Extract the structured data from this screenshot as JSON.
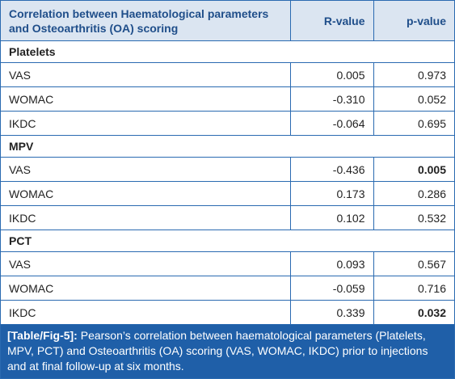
{
  "table": {
    "header": [
      "Correlation between Haematological parameters and Osteoarthritis (OA) scoring",
      "R-value",
      "p-value"
    ],
    "sections": [
      {
        "title": "Platelets",
        "rows": [
          {
            "label": "VAS",
            "r": "0.005",
            "p": "0.973"
          },
          {
            "label": "WOMAC",
            "r": "-0.310",
            "p": "0.052"
          },
          {
            "label": "IKDC",
            "r": "-0.064",
            "p": "0.695"
          }
        ]
      },
      {
        "title": "MPV",
        "rows": [
          {
            "label": "VAS",
            "r": "-0.436",
            "p": "0.005",
            "p_bold": true
          },
          {
            "label": "WOMAC",
            "r": "0.173",
            "p": "0.286"
          },
          {
            "label": "IKDC",
            "r": "0.102",
            "p": "0.532"
          }
        ]
      },
      {
        "title": "PCT",
        "rows": [
          {
            "label": "VAS",
            "r": "0.093",
            "p": "0.567"
          },
          {
            "label": "WOMAC",
            "r": "-0.059",
            "p": "0.716"
          },
          {
            "label": "IKDC",
            "r": "0.339",
            "p": "0.032",
            "p_bold": true
          }
        ]
      }
    ],
    "caption": {
      "label": "[Table/Fig-5]:",
      "text": "Pearson’s correlation between haematological parameters (Platelets, MPV, PCT) and Osteoarthritis (OA) scoring (VAS, WOMAC, IKDC) prior to injections and at final follow-up at six months."
    }
  }
}
